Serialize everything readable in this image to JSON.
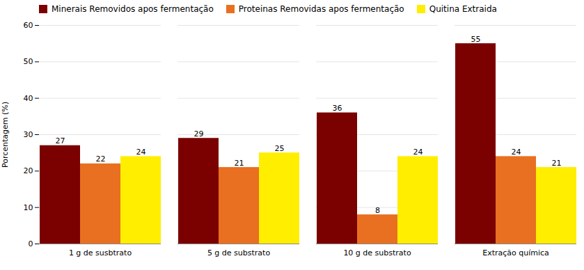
{
  "chart_data": {
    "type": "bar",
    "categories": [
      "1 g de susbtrato",
      "5 g de substrato",
      "10 g de substrato",
      "Extração química"
    ],
    "series": [
      {
        "name": "Minerais Removidos apos fermentação",
        "color": "#7B0000",
        "values": [
          27,
          29,
          36,
          55
        ]
      },
      {
        "name": "Proteinas Removidas apos fermentação",
        "color": "#E87020",
        "values": [
          22,
          21,
          8,
          24
        ]
      },
      {
        "name": "Quitina Extraida",
        "color": "#FFEE00",
        "values": [
          24,
          25,
          24,
          21
        ]
      }
    ],
    "ylabel": "Porcentagem (%)",
    "ylim": [
      0,
      60
    ],
    "yticks": [
      0,
      10,
      20,
      30,
      40,
      50,
      60
    ],
    "grid": true,
    "legend": "upper left",
    "data_labels": true
  }
}
